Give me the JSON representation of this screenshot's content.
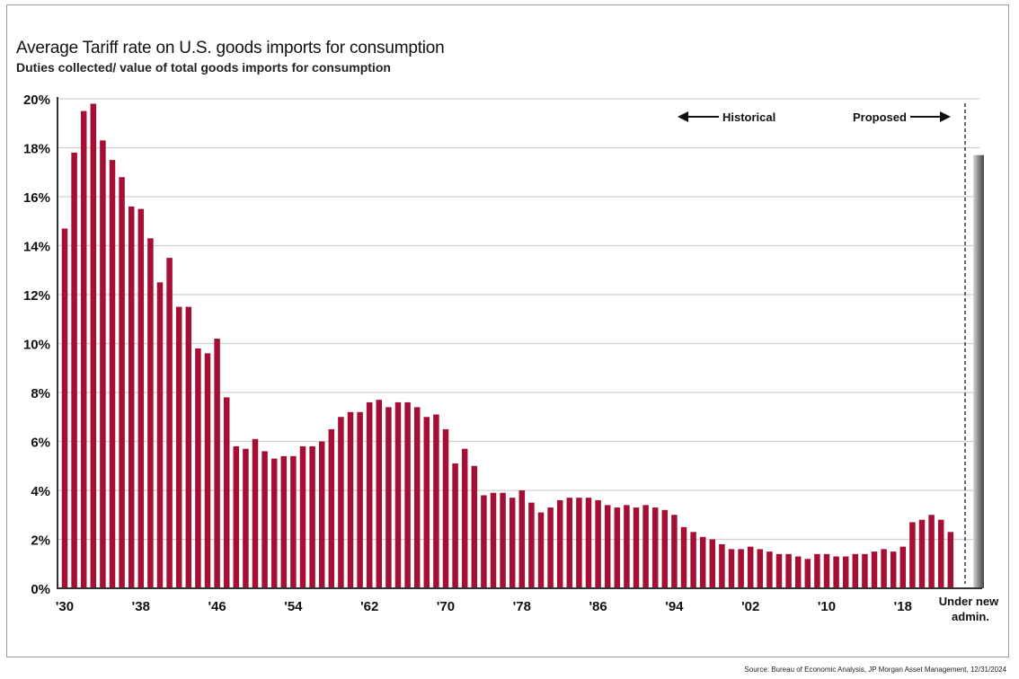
{
  "title": "Average Tariff rate on U.S. goods imports for consumption",
  "subtitle": "Duties collected/ value of total goods imports for consumption",
  "source": "Source: Bureau of Economic Analysis, JP Morgan Asset Management, 12/31/2024",
  "colors": {
    "bar": "#a50f34",
    "proposed_bar": "#7a7a7a",
    "grid": "#d0d0d0"
  },
  "chart_data": {
    "type": "bar",
    "title": "Average Tariff rate on U.S. goods imports for consumption",
    "subtitle": "Duties collected/ value of total goods imports for consumption",
    "ylim": [
      0,
      20
    ],
    "y_ticks": [
      "0%",
      "2%",
      "4%",
      "6%",
      "8%",
      "10%",
      "12%",
      "14%",
      "16%",
      "18%",
      "20%"
    ],
    "x_tick_labels": [
      "'30",
      "'38",
      "'46",
      "'54",
      "'62",
      "'70",
      "'78",
      "'86",
      "'94",
      "'02",
      "'10",
      "'18"
    ],
    "grid": true,
    "years": [
      1930,
      1931,
      1932,
      1933,
      1934,
      1935,
      1936,
      1937,
      1938,
      1939,
      1940,
      1941,
      1942,
      1943,
      1944,
      1945,
      1946,
      1947,
      1948,
      1949,
      1950,
      1951,
      1952,
      1953,
      1954,
      1955,
      1956,
      1957,
      1958,
      1959,
      1960,
      1961,
      1962,
      1963,
      1964,
      1965,
      1966,
      1967,
      1968,
      1969,
      1970,
      1971,
      1972,
      1973,
      1974,
      1975,
      1976,
      1977,
      1978,
      1979,
      1980,
      1981,
      1982,
      1983,
      1984,
      1985,
      1986,
      1987,
      1988,
      1989,
      1990,
      1991,
      1992,
      1993,
      1994,
      1995,
      1996,
      1997,
      1998,
      1999,
      2000,
      2001,
      2002,
      2003,
      2004,
      2005,
      2006,
      2007,
      2008,
      2009,
      2010,
      2011,
      2012,
      2013,
      2014,
      2015,
      2016,
      2017,
      2018,
      2019,
      2020,
      2021,
      2022,
      2023
    ],
    "values": [
      14.7,
      17.8,
      19.5,
      19.8,
      18.3,
      17.5,
      16.8,
      15.6,
      15.5,
      14.3,
      12.5,
      13.5,
      11.5,
      11.5,
      9.8,
      9.6,
      10.2,
      7.8,
      5.8,
      5.7,
      6.1,
      5.6,
      5.3,
      5.4,
      5.4,
      5.8,
      5.8,
      6.0,
      6.5,
      7.0,
      7.2,
      7.2,
      7.6,
      7.7,
      7.4,
      7.6,
      7.6,
      7.4,
      7.0,
      7.1,
      6.5,
      5.1,
      5.7,
      5.0,
      3.8,
      3.9,
      3.9,
      3.7,
      4.0,
      3.5,
      3.1,
      3.3,
      3.6,
      3.7,
      3.7,
      3.7,
      3.6,
      3.4,
      3.3,
      3.4,
      3.3,
      3.4,
      3.3,
      3.2,
      3.0,
      2.5,
      2.3,
      2.1,
      2.0,
      1.8,
      1.6,
      1.6,
      1.7,
      1.6,
      1.5,
      1.4,
      1.4,
      1.3,
      1.2,
      1.4,
      1.4,
      1.3,
      1.3,
      1.4,
      1.4,
      1.5,
      1.6,
      1.5,
      1.7,
      2.7,
      2.8,
      3.0,
      2.8,
      2.3
    ],
    "proposed": {
      "label_line1": "Under new",
      "label_line2": "admin.",
      "value": 17.7
    },
    "annotations": {
      "historical": "Historical",
      "proposed": "Proposed"
    }
  }
}
